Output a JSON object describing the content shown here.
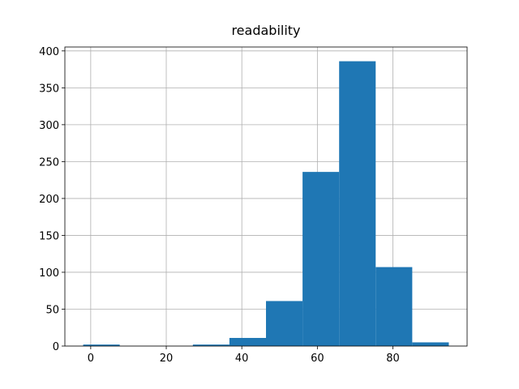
{
  "chart_data": {
    "type": "histogram",
    "title": "readability",
    "bins": [
      -2,
      7.68,
      17.36,
      27.04,
      36.72,
      46.4,
      56.08,
      65.76,
      75.44,
      85.12,
      94.8
    ],
    "values": [
      2,
      0,
      0,
      2,
      11,
      61,
      236,
      386,
      107,
      5
    ],
    "color": "#1f77b4",
    "xlim": [
      -6.84,
      99.64
    ],
    "xticks": [
      0,
      20,
      40,
      60,
      80
    ],
    "ylim": [
      0,
      405.3
    ],
    "yticks": [
      0,
      50,
      100,
      150,
      200,
      250,
      300,
      350,
      400
    ],
    "grid": true
  }
}
